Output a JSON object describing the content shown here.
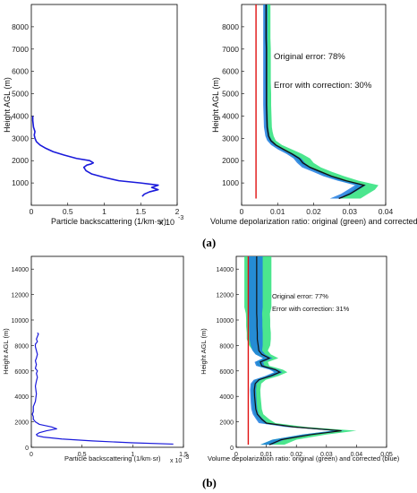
{
  "figure": {
    "panel_a_label": "(a)",
    "panel_b_label": "(b)"
  },
  "chart_data": [
    {
      "id": "a-backscatter",
      "type": "line",
      "xlabel": "Particle backscattering (1/km·sr)",
      "ylabel": "Height AGL (m)",
      "x_multiplier": "x 10",
      "x_exponent": "-3",
      "xlim": [
        0,
        2
      ],
      "ylim": [
        0,
        9000
      ],
      "xticks": [
        0,
        0.5,
        1,
        1.5,
        2
      ],
      "xtick_labels": [
        "0",
        "0.5",
        "1",
        "1.5",
        "2"
      ],
      "yticks": [
        1000,
        2000,
        3000,
        4000,
        5000,
        6000,
        7000,
        8000
      ],
      "ytick_labels": [
        "1000",
        "2000",
        "3000",
        "4000",
        "5000",
        "6000",
        "7000",
        "8000"
      ],
      "series": [
        {
          "color": "#1a1adb",
          "x": [
            1.52,
            1.55,
            1.62,
            1.74,
            1.65,
            1.74,
            1.5,
            1.2,
            1.0,
            0.83,
            0.75,
            0.72,
            0.76,
            0.82,
            0.85,
            0.8,
            0.62,
            0.45,
            0.3,
            0.2,
            0.12,
            0.07,
            0.05,
            0.04,
            0.05,
            0.03,
            0.02,
            0.02
          ],
          "y": [
            400,
            500,
            600,
            700,
            800,
            900,
            1000,
            1100,
            1250,
            1400,
            1550,
            1700,
            1800,
            1850,
            1900,
            2000,
            2100,
            2250,
            2400,
            2550,
            2700,
            2850,
            3000,
            3150,
            3300,
            3500,
            3800,
            4000
          ]
        }
      ]
    },
    {
      "id": "a-depolarization",
      "type": "line",
      "xlabel": "Volume depolarization ratio: original (green) and corrected (blue)",
      "ylabel": "Height AGL (m)",
      "xlim": [
        0,
        0.04
      ],
      "ylim": [
        0,
        9000
      ],
      "xticks": [
        0,
        0.01,
        0.02,
        0.03,
        0.04
      ],
      "xtick_labels": [
        "0",
        "0.01",
        "0.02",
        "0.03",
        "0.04"
      ],
      "yticks": [
        1000,
        2000,
        3000,
        4000,
        5000,
        6000,
        7000,
        8000
      ],
      "ytick_labels": [
        "1000",
        "2000",
        "3000",
        "4000",
        "5000",
        "6000",
        "7000",
        "8000"
      ],
      "annotations": [
        "Original error: 78%",
        "Error with correction: 30%"
      ],
      "reference_x": 0.004,
      "reference_color": "#e01010",
      "y": [
        300,
        500,
        700,
        900,
        1100,
        1300,
        1500,
        1700,
        1900,
        2100,
        2300,
        2500,
        2700,
        2900,
        3100,
        3300,
        3500,
        4000,
        4500,
        5000,
        5500,
        6000,
        6500,
        7000,
        7500,
        8000,
        8500,
        9000
      ],
      "series": [
        {
          "name": "original",
          "color": "#2ce27a",
          "x": [
            0.03,
            0.032,
            0.034,
            0.035,
            0.03,
            0.026,
            0.023,
            0.02,
            0.018,
            0.017,
            0.015,
            0.0125,
            0.01,
            0.0085,
            0.008,
            0.0078,
            0.0076,
            0.0075,
            0.0074,
            0.0074,
            0.0073,
            0.0073,
            0.0073,
            0.0073,
            0.0072,
            0.0072,
            0.0072,
            0.0072
          ],
          "spread": [
            0.003,
            0.003,
            0.003,
            0.003,
            0.0025,
            0.0025,
            0.002,
            0.002,
            0.002,
            0.002,
            0.0018,
            0.0015,
            0.0012,
            0.001,
            0.0009,
            0.0008,
            0.0008,
            0.0008,
            0.0008,
            0.0008,
            0.0008,
            0.0008,
            0.0008,
            0.0008,
            0.0008,
            0.0008,
            0.0008,
            0.0008
          ]
        },
        {
          "name": "corrected",
          "color": "#1f7be0",
          "x": [
            0.026,
            0.029,
            0.031,
            0.033,
            0.028,
            0.024,
            0.021,
            0.018,
            0.0165,
            0.0155,
            0.0135,
            0.011,
            0.009,
            0.0078,
            0.0072,
            0.007,
            0.0068,
            0.0067,
            0.0066,
            0.0066,
            0.0066,
            0.0066,
            0.0066,
            0.0066,
            0.0066,
            0.0066,
            0.0066,
            0.0066
          ],
          "spread": [
            0.0015,
            0.0015,
            0.0015,
            0.0015,
            0.0013,
            0.0013,
            0.0012,
            0.0012,
            0.0011,
            0.0011,
            0.001,
            0.0009,
            0.0008,
            0.0007,
            0.0006,
            0.0006,
            0.0006,
            0.0006,
            0.0006,
            0.0006,
            0.0006,
            0.0006,
            0.0006,
            0.0006,
            0.0006,
            0.0006,
            0.0006,
            0.0006
          ]
        },
        {
          "name": "mean",
          "color": "#111111",
          "x": [
            0.027,
            0.03,
            0.032,
            0.034,
            0.029,
            0.025,
            0.022,
            0.019,
            0.017,
            0.016,
            0.014,
            0.0117,
            0.0095,
            0.0081,
            0.0075,
            0.0073,
            0.0071,
            0.007,
            0.0069,
            0.0069,
            0.0069,
            0.0069,
            0.0069,
            0.0069,
            0.0068,
            0.0068,
            0.0068,
            0.0068
          ]
        }
      ]
    },
    {
      "id": "b-backscatter",
      "type": "line",
      "xlabel": "Particle backscattering (1/km·sr)",
      "ylabel": "Height AGL (m)",
      "x_multiplier": "x 10",
      "x_exponent": "-3",
      "xlim": [
        0,
        1.5
      ],
      "ylim": [
        0,
        15000
      ],
      "xticks": [
        0,
        0.5,
        1,
        1.5
      ],
      "xtick_labels": [
        "0",
        "0.5",
        "1",
        "1.5"
      ],
      "yticks": [
        0,
        2000,
        4000,
        6000,
        8000,
        10000,
        12000,
        14000
      ],
      "ytick_labels": [
        "0",
        "2000",
        "4000",
        "6000",
        "8000",
        "10000",
        "12000",
        "14000"
      ],
      "series": [
        {
          "color": "#1a1adb",
          "x": [
            1.4,
            1.0,
            0.6,
            0.3,
            0.12,
            0.06,
            0.05,
            0.08,
            0.15,
            0.25,
            0.2,
            0.08,
            0.04,
            0.02,
            0.02,
            0.01,
            0.02,
            0.02,
            0.04,
            0.05,
            0.04,
            0.05,
            0.06,
            0.05,
            0.06,
            0.04,
            0.05,
            0.04,
            0.05,
            0.06,
            0.05,
            0.04,
            0.04,
            0.06,
            0.05,
            0.06,
            0.07,
            0.06
          ],
          "y": [
            250,
            350,
            500,
            650,
            800,
            900,
            1000,
            1150,
            1300,
            1450,
            1600,
            1800,
            2000,
            2200,
            2400,
            2600,
            2800,
            3200,
            3600,
            4200,
            4800,
            5200,
            5500,
            5800,
            6000,
            6200,
            6500,
            6800,
            7000,
            7300,
            7600,
            7900,
            8100,
            8300,
            8500,
            8700,
            8900,
            9000
          ]
        }
      ]
    },
    {
      "id": "b-depolarization",
      "type": "line",
      "xlabel": "Volume depolarization ratio: original (green) and corrected (blue)",
      "ylabel": "Height AGL (m)",
      "xlim": [
        0,
        0.05
      ],
      "ylim": [
        0,
        15000
      ],
      "xticks": [
        0,
        0.01,
        0.02,
        0.03,
        0.04,
        0.05
      ],
      "xtick_labels": [
        "0",
        "0.01",
        "0.02",
        "0.03",
        "0.04",
        "0.05"
      ],
      "yticks": [
        0,
        2000,
        4000,
        6000,
        8000,
        10000,
        12000,
        14000
      ],
      "ytick_labels": [
        "0",
        "2000",
        "4000",
        "6000",
        "8000",
        "10000",
        "12000",
        "14000"
      ],
      "annotations": [
        "Original error: 77%",
        "Error with correction: 31%"
      ],
      "reference_x": 0.004,
      "reference_color": "#e01010",
      "y": [
        200,
        600,
        1000,
        1300,
        1600,
        1900,
        2200,
        2600,
        3000,
        3500,
        4000,
        4500,
        5000,
        5300,
        5600,
        5900,
        6100,
        6400,
        6700,
        7000,
        7300,
        7600,
        8000,
        8500,
        9000,
        9500,
        10000,
        10500,
        11000,
        11500,
        12000,
        12500,
        13000,
        13500,
        14000,
        14500,
        15000
      ],
      "series": [
        {
          "name": "original",
          "color": "#2ce27a",
          "x": [
            0.012,
            0.016,
            0.026,
            0.036,
            0.02,
            0.011,
            0.009,
            0.0075,
            0.007,
            0.0068,
            0.0066,
            0.0065,
            0.0068,
            0.008,
            0.012,
            0.015,
            0.0135,
            0.009,
            0.0085,
            0.0115,
            0.009,
            0.008,
            0.0078,
            0.0075,
            0.0075,
            0.0073,
            0.0073,
            0.0072,
            0.0072,
            0.0072,
            0.0072,
            0.0072,
            0.0072,
            0.0072,
            0.0072,
            0.0072,
            0.0072
          ],
          "spread": [
            0.004,
            0.004,
            0.004,
            0.004,
            0.003,
            0.002,
            0.002,
            0.0015,
            0.0015,
            0.0015,
            0.0015,
            0.0015,
            0.0015,
            0.0018,
            0.002,
            0.002,
            0.002,
            0.002,
            0.002,
            0.0025,
            0.0025,
            0.0025,
            0.0035,
            0.004,
            0.004,
            0.004,
            0.004,
            0.004,
            0.0045,
            0.0045,
            0.0045,
            0.0045,
            0.0045,
            0.0045,
            0.0045,
            0.0045,
            0.0045
          ]
        },
        {
          "name": "corrected",
          "color": "#1f7be0",
          "x": [
            0.01,
            0.014,
            0.024,
            0.034,
            0.018,
            0.009,
            0.0078,
            0.0065,
            0.006,
            0.0058,
            0.0057,
            0.0056,
            0.0058,
            0.007,
            0.011,
            0.014,
            0.0125,
            0.008,
            0.0075,
            0.0105,
            0.008,
            0.007,
            0.0068,
            0.0066,
            0.0066,
            0.0065,
            0.0065,
            0.0064,
            0.0064,
            0.0064,
            0.0064,
            0.0064,
            0.0064,
            0.0064,
            0.0064,
            0.0064,
            0.0064
          ],
          "spread": [
            0.002,
            0.002,
            0.002,
            0.002,
            0.0018,
            0.0015,
            0.0012,
            0.001,
            0.001,
            0.001,
            0.001,
            0.001,
            0.001,
            0.0012,
            0.0014,
            0.0014,
            0.0014,
            0.0014,
            0.0014,
            0.0016,
            0.0016,
            0.0016,
            0.002,
            0.0022,
            0.0022,
            0.0022,
            0.0022,
            0.0022,
            0.0024,
            0.0024,
            0.0024,
            0.0024,
            0.0024,
            0.0024,
            0.0024,
            0.0024,
            0.0024
          ]
        },
        {
          "name": "mean",
          "color": "#111111",
          "x": [
            0.011,
            0.015,
            0.025,
            0.035,
            0.019,
            0.01,
            0.0085,
            0.007,
            0.0065,
            0.0063,
            0.0061,
            0.006,
            0.0063,
            0.0075,
            0.0115,
            0.0145,
            0.013,
            0.0085,
            0.008,
            0.011,
            0.0085,
            0.0075,
            0.0073,
            0.007,
            0.007,
            0.0069,
            0.0069,
            0.0068,
            0.0068,
            0.0068,
            0.0068,
            0.0068,
            0.0068,
            0.0068,
            0.0068,
            0.0068,
            0.0068
          ]
        }
      ]
    }
  ]
}
